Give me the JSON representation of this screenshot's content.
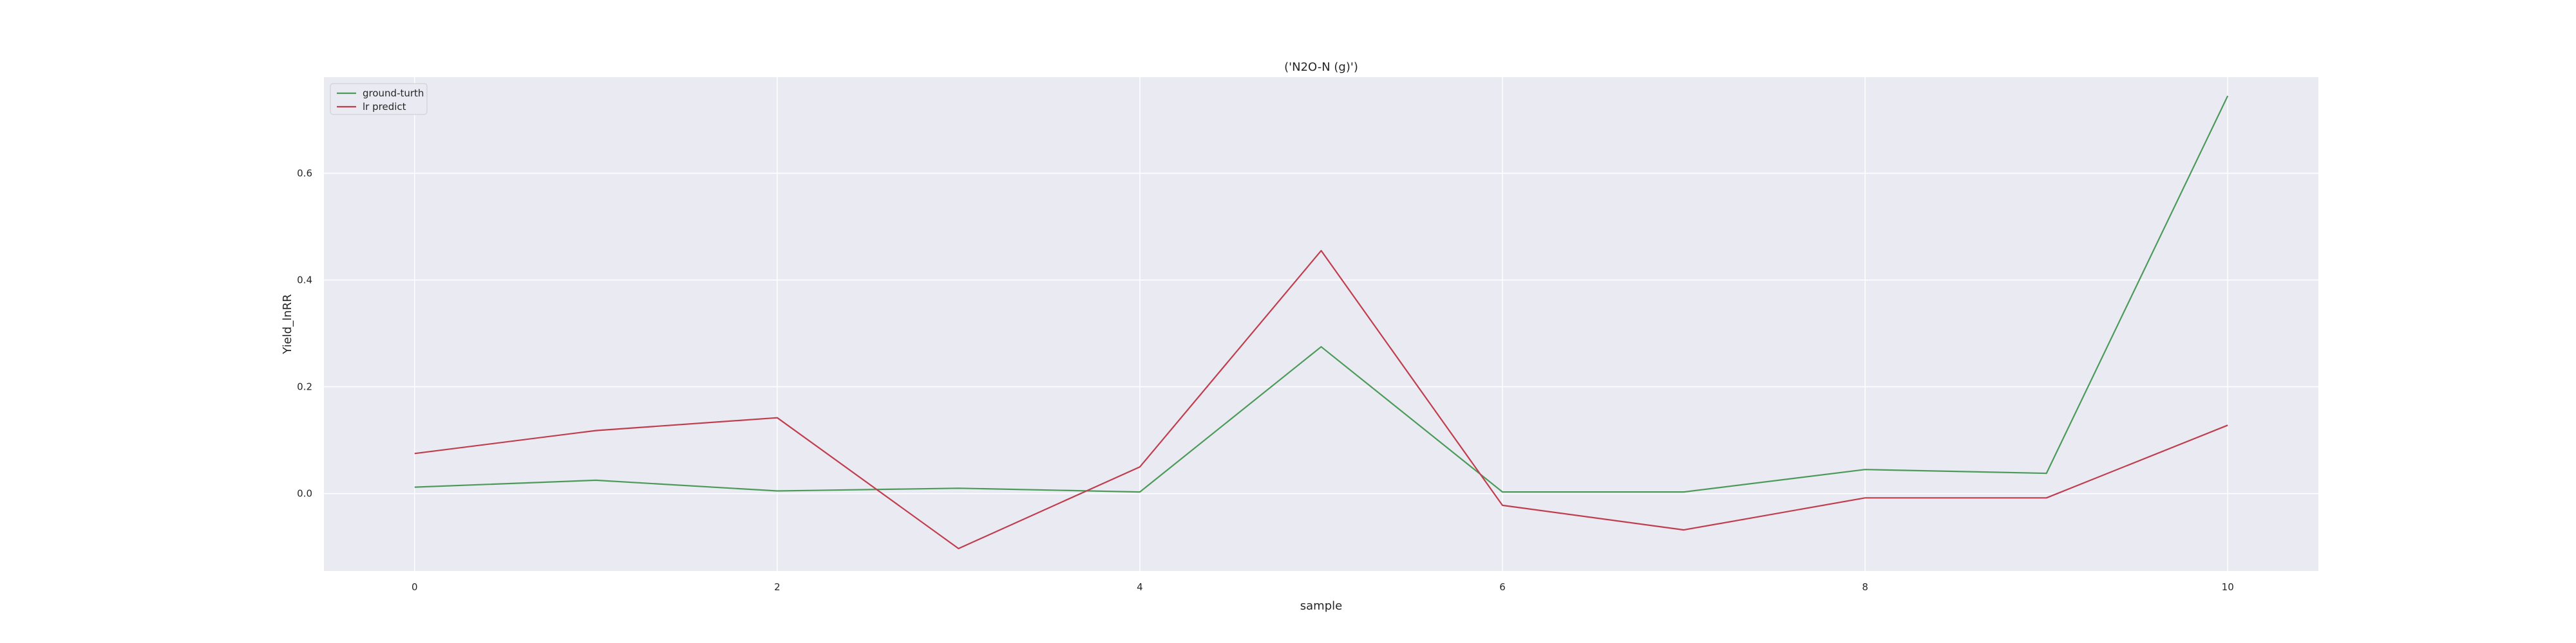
{
  "chart_data": {
    "type": "line",
    "title": "('N2O-N (g)')",
    "xlabel": "sample",
    "ylabel": "Yield_lnRR",
    "x": [
      0,
      1,
      2,
      3,
      4,
      5,
      6,
      7,
      8,
      9,
      10
    ],
    "xlim": [
      -0.5,
      10.5
    ],
    "ylim": [
      -0.145,
      0.78
    ],
    "xticks": [
      0,
      2,
      4,
      6,
      8,
      10
    ],
    "yticks": [
      0.0,
      0.2,
      0.4,
      0.6
    ],
    "ytick_labels": [
      "0.0",
      "0.2",
      "0.4",
      "0.6"
    ],
    "grid": true,
    "legend_position": "top-left",
    "series": [
      {
        "name": "ground-turth",
        "color": "#4c9a5a",
        "values": [
          0.012,
          0.025,
          0.005,
          0.01,
          0.003,
          0.275,
          0.003,
          0.003,
          0.045,
          0.038,
          0.745
        ]
      },
      {
        "name": "lr predict",
        "color": "#c03d4e",
        "values": [
          0.075,
          0.118,
          0.142,
          -0.103,
          0.05,
          0.455,
          -0.022,
          -0.068,
          -0.008,
          -0.008,
          0.128
        ]
      }
    ]
  }
}
